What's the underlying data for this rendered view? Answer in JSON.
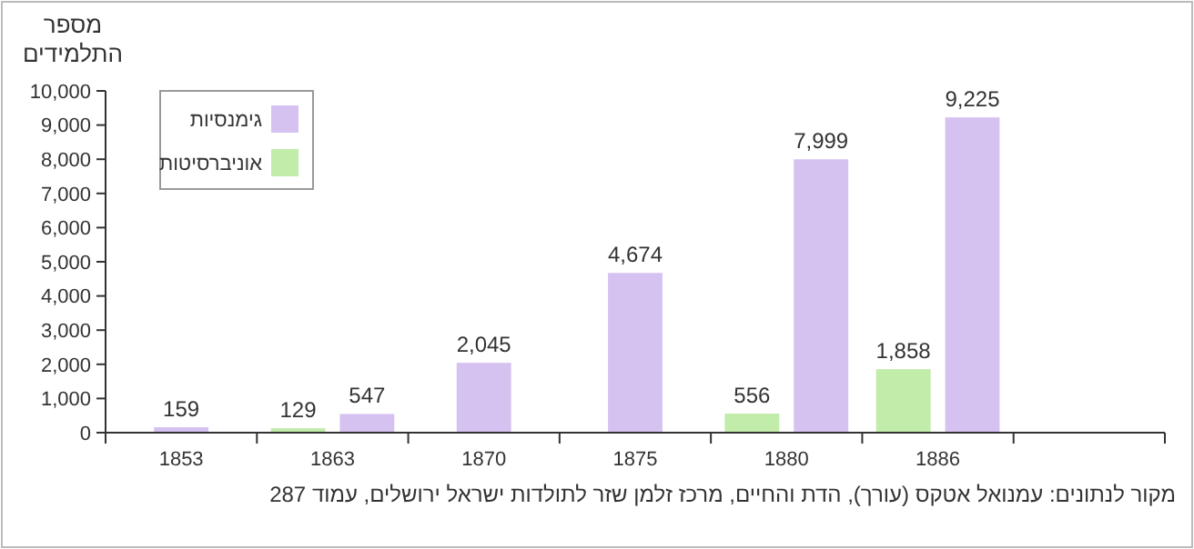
{
  "chart_data": {
    "type": "bar",
    "ylabel": "מספר התלמידים",
    "categories": [
      "1853",
      "1863",
      "1870",
      "1875",
      "1880",
      "1886",
      null
    ],
    "series": [
      {
        "name": "גימנסיות",
        "color": "#d6c2f0",
        "values": [
          159,
          547,
          2045,
          4674,
          7999,
          9225,
          null
        ],
        "value_labels": [
          "159",
          "547",
          "2,045",
          "4,674",
          "7,999",
          "9,225",
          null
        ]
      },
      {
        "name": "אוניברסיטות",
        "color": "#c2ecaa",
        "values": [
          null,
          129,
          null,
          null,
          556,
          1858,
          null
        ],
        "value_labels": [
          null,
          "129",
          null,
          null,
          "556",
          "1,858",
          null
        ]
      }
    ],
    "ylim": [
      0,
      10000
    ],
    "yticks": [
      0,
      {
        "value": 1000,
        "label": "1,000"
      },
      {
        "value": 2000,
        "label": "2,000"
      },
      {
        "value": 3000,
        "label": "3,000"
      },
      {
        "value": 4000,
        "label": "4,000"
      },
      {
        "value": 5000,
        "label": "5,000"
      },
      {
        "value": 6000,
        "label": "6,000"
      },
      {
        "value": 7000,
        "label": "7,000"
      },
      {
        "value": 8000,
        "label": "8,000"
      },
      {
        "value": 9000,
        "label": "9,000"
      },
      {
        "value": 10000,
        "label": "10,000"
      }
    ],
    "grid": false,
    "legend": "top left",
    "annotations": [
      "מקור לנתונים: עמנואל אטקס (עורך), הדת והחיים, מרכז זלמן שזר לתולדות ישראל ירושלים, עמוד 287"
    ]
  }
}
